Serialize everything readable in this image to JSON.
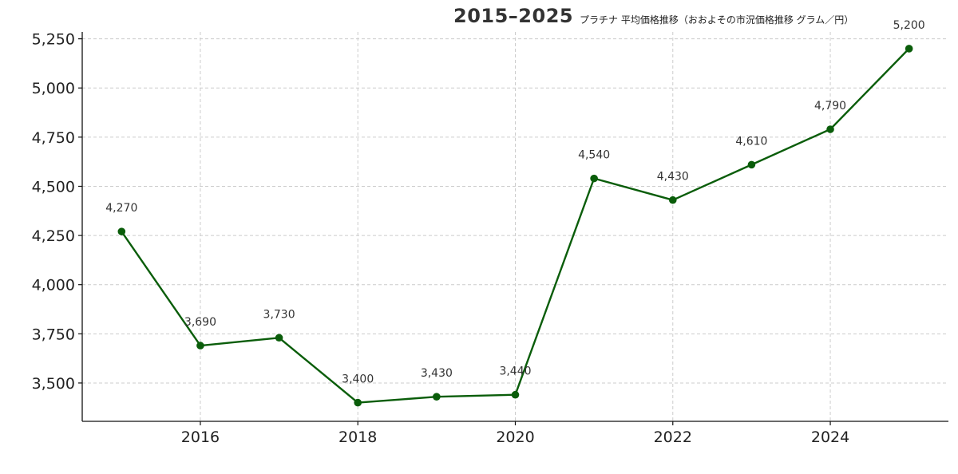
{
  "chart_data": {
    "type": "line",
    "title": "2015–2025",
    "subtitle": "プラチナ 平均価格推移（おおよその市況価格推移 グラム／円）",
    "xlabel": "",
    "ylabel": "",
    "x": [
      2015,
      2016,
      2017,
      2018,
      2019,
      2020,
      2021,
      2022,
      2023,
      2024,
      2025
    ],
    "series": [
      {
        "values": [
          4270,
          3690,
          3730,
          3400,
          3430,
          3440,
          4540,
          4430,
          4610,
          4790,
          5200
        ],
        "color": "#0a5d0a"
      }
    ],
    "data_labels": [
      "4,270",
      "3,690",
      "3,730",
      "3,400",
      "3,430",
      "3,440",
      "4,540",
      "4,430",
      "4,610",
      "4,790",
      "5,200"
    ],
    "x_ticks": [
      2016,
      2018,
      2020,
      2022,
      2024
    ],
    "x_tick_labels": [
      "2016",
      "2018",
      "2020",
      "2022",
      "2024"
    ],
    "y_ticks": [
      3500,
      3750,
      4000,
      4250,
      4500,
      4750,
      5000,
      5250
    ],
    "y_tick_labels": [
      "3,500",
      "3,750",
      "4,000",
      "4,250",
      "4,500",
      "4,750",
      "5,000",
      "5,250"
    ],
    "xlim": [
      2014.5,
      2025.5
    ],
    "ylim": [
      3305,
      5285
    ],
    "grid": true,
    "line_color": "#0a5d0a",
    "grid_color": "#cccccc"
  }
}
